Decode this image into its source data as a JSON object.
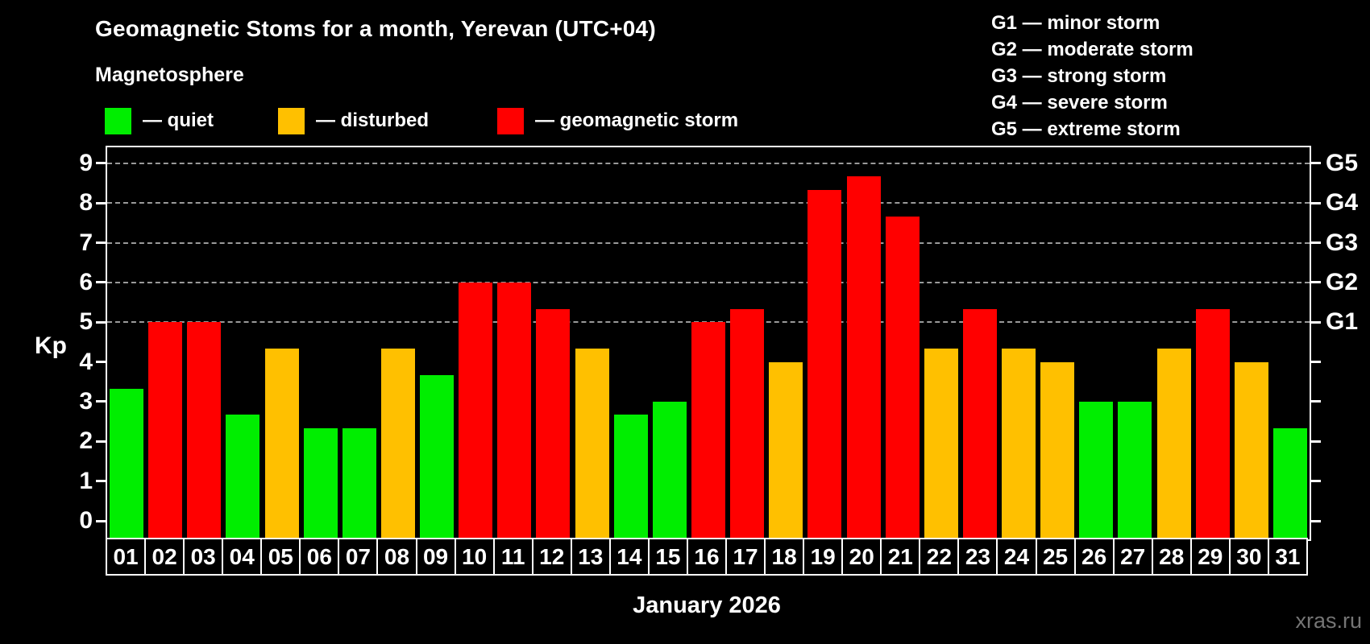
{
  "title": "Geomagnetic Stoms for a month, Yerevan (UTC+04)",
  "subtitle": "Magnetosphere",
  "legend": {
    "items": [
      {
        "status": "quiet",
        "label": "— quiet"
      },
      {
        "status": "disturbed",
        "label": "— disturbed"
      },
      {
        "status": "storm",
        "label": "— geomagnetic storm"
      }
    ],
    "positions_x": [
      130,
      345,
      617
    ]
  },
  "storm_scale_legend": [
    "G1 — minor storm",
    "G2 — moderate storm",
    "G3 — strong storm",
    "G4 — severe storm",
    "G5 — extreme storm"
  ],
  "x_title": "January 2026",
  "watermark": "xras.ru",
  "chart_data": {
    "type": "bar",
    "title": "Geomagnetic Stoms for a month, Yerevan (UTC+04)",
    "ylabel": "Kp",
    "xlabel": "January 2026",
    "ylim": [
      -0.47,
      9.4
    ],
    "y_ticks": [
      0,
      1,
      2,
      3,
      4,
      5,
      6,
      7,
      8,
      9
    ],
    "gridlines_at": [
      5,
      6,
      7,
      8,
      9
    ],
    "right_axis_labels": [
      {
        "kp": 5,
        "label": "G1"
      },
      {
        "kp": 6,
        "label": "G2"
      },
      {
        "kp": 7,
        "label": "G3"
      },
      {
        "kp": 8,
        "label": "G4"
      },
      {
        "kp": 9,
        "label": "G5"
      }
    ],
    "categories": [
      "01",
      "02",
      "03",
      "04",
      "05",
      "06",
      "07",
      "08",
      "09",
      "10",
      "11",
      "12",
      "13",
      "14",
      "15",
      "16",
      "17",
      "18",
      "19",
      "20",
      "21",
      "22",
      "23",
      "24",
      "25",
      "26",
      "27",
      "28",
      "29",
      "30",
      "31"
    ],
    "values": [
      3.33,
      5.0,
      5.0,
      2.67,
      4.33,
      2.33,
      2.33,
      4.33,
      3.67,
      6.0,
      6.0,
      5.33,
      4.33,
      2.67,
      3.0,
      5.0,
      5.33,
      4.0,
      8.33,
      8.67,
      7.67,
      4.33,
      5.33,
      4.33,
      4.0,
      3.0,
      3.0,
      4.33,
      5.33,
      4.0,
      2.33
    ],
    "statuses": [
      "quiet",
      "storm",
      "storm",
      "quiet",
      "disturbed",
      "quiet",
      "quiet",
      "disturbed",
      "quiet",
      "storm",
      "storm",
      "storm",
      "disturbed",
      "quiet",
      "quiet",
      "storm",
      "storm",
      "disturbed",
      "storm",
      "storm",
      "storm",
      "disturbed",
      "storm",
      "disturbed",
      "disturbed",
      "quiet",
      "quiet",
      "disturbed",
      "storm",
      "disturbed",
      "quiet"
    ],
    "colors": {
      "quiet": "#00ee00",
      "disturbed": "#ffc000",
      "storm": "#ff0000"
    },
    "grid_color": "#9a9a9a",
    "axis_color": "#ffffff",
    "background": "#000000"
  }
}
